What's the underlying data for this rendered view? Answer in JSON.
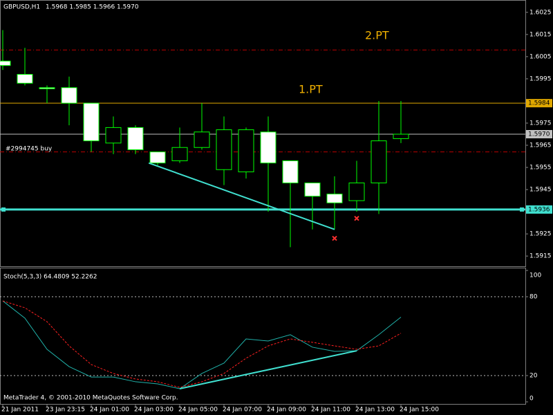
{
  "chart_data": [
    {
      "type": "candlestick",
      "title": "GBPUSD,H1",
      "subtitle": "1.5968 1.5985 1.5966 1.5970",
      "categories": [
        "21 Jan 2011",
        null,
        "23 Jan 23:15",
        null,
        "24 Jan 01:00",
        null,
        "24 Jan 03:00",
        null,
        "24 Jan 05:00",
        null,
        "24 Jan 07:00",
        null,
        "24 Jan 09:00",
        null,
        "24 Jan 11:00",
        null,
        "24 Jan 13:00",
        null,
        "24 Jan 15:00"
      ],
      "open": [
        1.6003,
        1.5997,
        1.5991,
        1.5991,
        1.5984,
        1.5966,
        1.5973,
        1.5962,
        1.5958,
        1.5964,
        1.5954,
        1.5953,
        1.5971,
        1.5958,
        1.5948,
        1.5943,
        1.594,
        1.5948,
        1.5968
      ],
      "high": [
        1.6017,
        1.6009,
        1.5992,
        1.5996,
        1.5984,
        1.5978,
        1.5974,
        1.5962,
        1.5973,
        1.5984,
        1.5978,
        1.5973,
        1.5978,
        1.5958,
        1.5948,
        1.5951,
        1.5958,
        1.5985,
        1.5985
      ],
      "low": [
        1.5999,
        1.5992,
        1.5984,
        1.5974,
        1.5962,
        1.5961,
        1.5961,
        1.5956,
        1.5957,
        1.5963,
        1.5947,
        1.595,
        1.5935,
        1.5919,
        1.5927,
        1.5927,
        1.5935,
        1.5934,
        1.5966
      ],
      "close": [
        1.6001,
        1.5993,
        1.59905,
        1.5984,
        1.5967,
        1.5973,
        1.5963,
        1.5957,
        1.5964,
        1.5971,
        1.5972,
        1.5972,
        1.5957,
        1.5948,
        1.5942,
        1.5939,
        1.5948,
        1.5967,
        1.597
      ],
      "outline_color": "#00ff00",
      "up_color": "#000000",
      "down_color": "#ffffff",
      "ylim": [
        1.5911,
        1.6029
      ],
      "yticks": [
        1.6025,
        1.6015,
        1.6005,
        1.5995,
        1.5975,
        1.5965,
        1.5955,
        1.5945,
        1.5925,
        1.5915
      ],
      "levels": [
        {
          "value": 1.5984,
          "color": "#e0a800"
        },
        {
          "value": 1.597,
          "label": "1.5970",
          "color": "#c0c0c0"
        },
        {
          "value": 1.5936,
          "color": "#40e0d0"
        }
      ],
      "order_lines": [
        {
          "value": 1.6008,
          "color": "#c00000"
        },
        {
          "value": 1.5962,
          "color": "#c00000",
          "name": "#2994745 buy"
        }
      ],
      "annotations": [
        "2.PT",
        "1.PT"
      ],
      "trendline": {
        "x": [
          6.6,
          15
        ],
        "values": [
          1.5957,
          1.5927
        ],
        "color": "#40e0d0"
      },
      "markers": {
        "x": [
          15,
          16
        ],
        "values": [
          1.5923,
          1.5932
        ],
        "color": "#ff3030"
      }
    },
    {
      "type": "line",
      "title": "Stoch(5,3,3) 64.4809 52.2262",
      "series": [
        {
          "color": "#20b2aa",
          "style": "solid",
          "values": [
            76.8,
            63.7,
            40,
            26.8,
            18.9,
            18.9,
            15.3,
            13.7,
            10,
            21.6,
            29.5,
            47.9,
            46.3,
            51.1,
            41.6,
            38.4,
            38.9,
            51.1,
            64.4809
          ]
        },
        {
          "color": "#ff2020",
          "style": "dashed",
          "values": [
            76.8,
            71.6,
            61,
            42.6,
            28.4,
            21.6,
            17.4,
            15.3,
            11,
            15.3,
            21.6,
            33.2,
            42.6,
            47.9,
            45.3,
            42.6,
            40,
            42.6,
            52.2262
          ]
        }
      ],
      "ylim": [
        0,
        100
      ],
      "yticks": [
        100,
        80,
        20,
        0
      ],
      "levels": [
        80,
        20
      ],
      "trendline": {
        "x": [
          8,
          16
        ],
        "values": [
          10,
          38.9
        ],
        "color": "#40e0d0"
      },
      "footer": "MetaTrader 4, © 2001-2010 MetaQuotes Software Corp."
    }
  ]
}
